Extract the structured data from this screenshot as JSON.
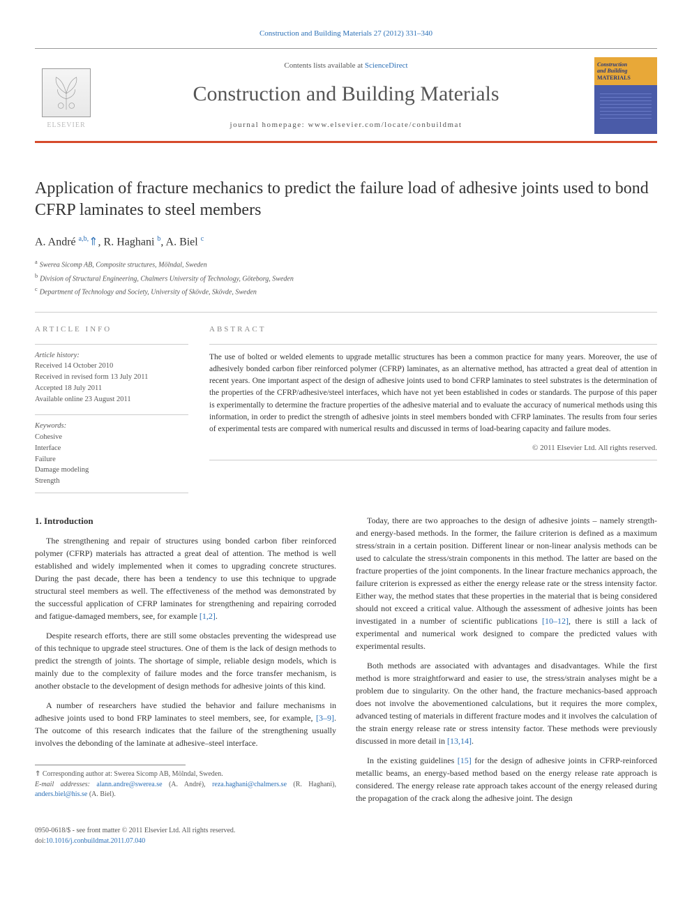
{
  "citation": "Construction and Building Materials 27 (2012) 331–340",
  "header": {
    "contents_prefix": "Contents lists available at ",
    "contents_link": "ScienceDirect",
    "journal_name": "Construction and Building Materials",
    "homepage_prefix": "journal homepage: ",
    "homepage_url": "www.elsevier.com/locate/conbuildmat",
    "publisher": "ELSEVIER",
    "cover_title_1": "Construction",
    "cover_title_2": "and Building",
    "cover_title_3": "MATERIALS"
  },
  "article": {
    "title": "Application of fracture mechanics to predict the failure load of adhesive joints used to bond CFRP laminates to steel members",
    "authors_html": "A. André <sup>a,b,</sup><span class='star'>⇑</span>, R. Haghani <sup>b</sup>, A. Biel <sup>c</sup>",
    "affiliations": [
      {
        "sup": "a",
        "text": "Swerea Sicomp AB, Composite structures, Mölndal, Sweden"
      },
      {
        "sup": "b",
        "text": "Division of Structural Engineering, Chalmers University of Technology, Göteborg, Sweden"
      },
      {
        "sup": "c",
        "text": "Department of Technology and Society, University of Skövde, Skövde, Sweden"
      }
    ]
  },
  "info": {
    "label": "ARTICLE INFO",
    "history_label": "Article history:",
    "received": "Received 14 October 2010",
    "revised": "Received in revised form 13 July 2011",
    "accepted": "Accepted 18 July 2011",
    "online": "Available online 23 August 2011",
    "keywords_label": "Keywords:",
    "keywords": [
      "Cohesive",
      "Interface",
      "Failure",
      "Damage modeling",
      "Strength"
    ]
  },
  "abstract": {
    "label": "ABSTRACT",
    "text": "The use of bolted or welded elements to upgrade metallic structures has been a common practice for many years. Moreover, the use of adhesively bonded carbon fiber reinforced polymer (CFRP) laminates, as an alternative method, has attracted a great deal of attention in recent years. One important aspect of the design of adhesive joints used to bond CFRP laminates to steel substrates is the determination of the properties of the CFRP/adhesive/steel interfaces, which have not yet been established in codes or standards. The purpose of this paper is experimentally to determine the fracture properties of the adhesive material and to evaluate the accuracy of numerical methods using this information, in order to predict the strength of adhesive joints in steel members bonded with CFRP laminates. The results from four series of experimental tests are compared with numerical results and discussed in terms of load-bearing capacity and failure modes.",
    "copyright": "© 2011 Elsevier Ltd. All rights reserved."
  },
  "body": {
    "heading_1": "1. Introduction",
    "left_paragraphs": [
      "The strengthening and repair of structures using bonded carbon fiber reinforced polymer (CFRP) materials has attracted a great deal of attention. The method is well established and widely implemented when it comes to upgrading concrete structures. During the past decade, there has been a tendency to use this technique to upgrade structural steel members as well. The effectiveness of the method was demonstrated by the successful application of CFRP laminates for strengthening and repairing corroded and fatigue-damaged members, see, for example [1,2].",
      "Despite research efforts, there are still some obstacles preventing the widespread use of this technique to upgrade steel structures. One of them is the lack of design methods to predict the strength of joints. The shortage of simple, reliable design models, which is mainly due to the complexity of failure modes and the force transfer mechanism, is another obstacle to the development of design methods for adhesive joints of this kind.",
      "A number of researchers have studied the behavior and failure mechanisms in adhesive joints used to bond FRP laminates to steel members, see, for example, [3–9]. The outcome of this research indicates that the failure of the strengthening usually involves the debonding of the laminate at adhesive–steel interface."
    ],
    "right_paragraphs": [
      "Today, there are two approaches to the design of adhesive joints – namely strength- and energy-based methods. In the former, the failure criterion is defined as a maximum stress/strain in a certain position. Different linear or non-linear analysis methods can be used to calculate the stress/strain components in this method. The latter are based on the fracture properties of the joint components. In the linear fracture mechanics approach, the failure criterion is expressed as either the energy release rate or the stress intensity factor. Either way, the method states that these properties in the material that is being considered should not exceed a critical value. Although the assessment of adhesive joints has been investigated in a number of scientific publications [10–12], there is still a lack of experimental and numerical work designed to compare the predicted values with experimental results.",
      "Both methods are associated with advantages and disadvantages. While the first method is more straightforward and easier to use, the stress/strain analyses might be a problem due to singularity. On the other hand, the fracture mechanics-based approach does not involve the abovementioned calculations, but it requires the more complex, advanced testing of materials in different fracture modes and it involves the calculation of the strain energy release rate or stress intensity factor. These methods were previously discussed in more detail in [13,14].",
      "In the existing guidelines [15] for the design of adhesive joints in CFRP-reinforced metallic beams, an energy-based method based on the energy release rate approach is considered. The energy release rate approach takes account of the energy released during the propagation of the crack along the adhesive joint. The design"
    ]
  },
  "footnotes": {
    "corr": "⇑ Corresponding author at: Swerea Sicomp AB, Mölndal, Sweden.",
    "email_label": "E-mail addresses: ",
    "emails": [
      {
        "addr": "alann.andre@swerea.se",
        "who": " (A. André), "
      },
      {
        "addr": "reza.haghani@chalmers.se",
        "who": " (R. Haghani), "
      },
      {
        "addr": "anders.biel@his.se",
        "who": " (A. Biel)."
      }
    ]
  },
  "footer": {
    "issn_line": "0950-0618/$ - see front matter © 2011 Elsevier Ltd. All rights reserved.",
    "doi_prefix": "doi:",
    "doi": "10.1016/j.conbuildmat.2011.07.040"
  },
  "colors": {
    "link": "#2b6fb6",
    "rule": "#d64a2b",
    "cover_bg": "#4a5ba8",
    "cover_band": "#e8a838"
  }
}
